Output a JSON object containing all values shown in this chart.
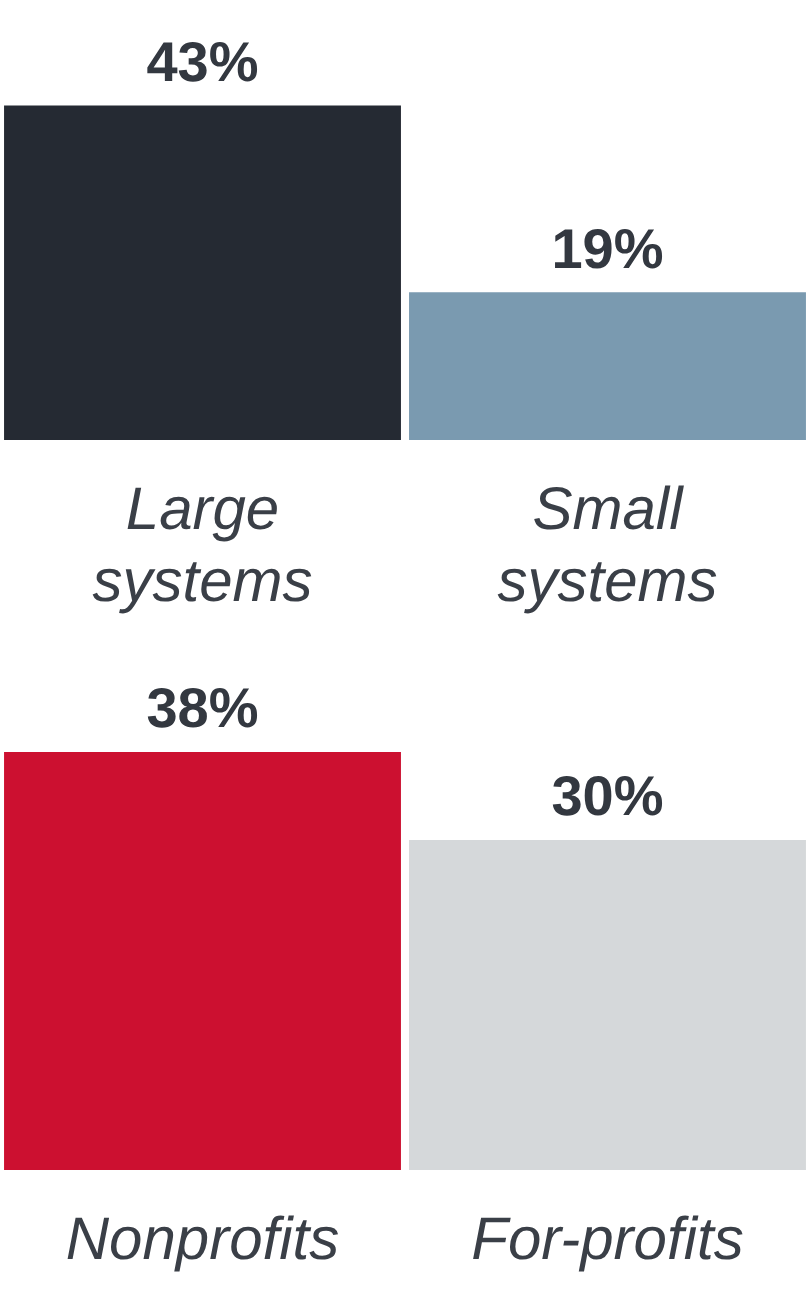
{
  "chart_data": [
    {
      "type": "bar",
      "categories": [
        "Large systems",
        "Small systems"
      ],
      "values": [
        43,
        19
      ],
      "colors": [
        "#252a33",
        "#7a9ab0"
      ],
      "value_labels": [
        "43%",
        "19%"
      ]
    },
    {
      "type": "bar",
      "categories": [
        "Nonprofits",
        "For-profits"
      ],
      "values": [
        38,
        30
      ],
      "colors": [
        "#cc1030",
        "#d5d8da"
      ],
      "value_labels": [
        "38%",
        "30%"
      ]
    }
  ]
}
